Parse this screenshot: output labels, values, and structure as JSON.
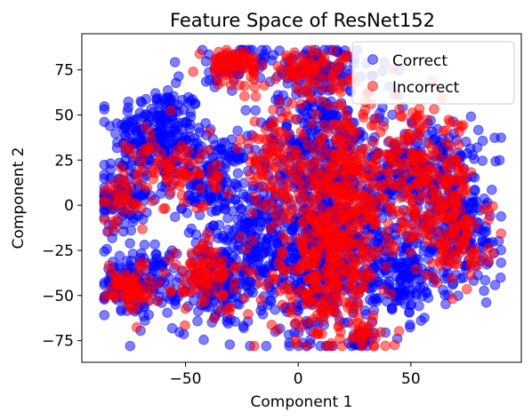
{
  "chart_data": {
    "type": "scatter",
    "title": "Feature Space of ResNet152",
    "xlabel": "Component 1",
    "ylabel": "Component 2",
    "xlim": [
      -96,
      99
    ],
    "ylim": [
      -87,
      95
    ],
    "xticks": [
      -50,
      0,
      50
    ],
    "yticks": [
      -75,
      -50,
      -25,
      0,
      25,
      50,
      75
    ],
    "grid": false,
    "legend_position": "upper-right",
    "series": [
      {
        "name": "Correct",
        "color": "#0000ff",
        "opacity": 0.5,
        "clusters": [
          {
            "cx": -62,
            "cy": 40,
            "sx": 10,
            "sy": 13,
            "n": 230
          },
          {
            "cx": -78,
            "cy": 5,
            "sx": 6,
            "sy": 10,
            "n": 110
          },
          {
            "cx": -40,
            "cy": 15,
            "sx": 9,
            "sy": 12,
            "n": 150
          },
          {
            "cx": -70,
            "cy": -42,
            "sx": 9,
            "sy": 10,
            "n": 150
          },
          {
            "cx": -35,
            "cy": -45,
            "sx": 10,
            "sy": 12,
            "n": 170
          },
          {
            "cx": -20,
            "cy": -12,
            "sx": 10,
            "sy": 14,
            "n": 150
          },
          {
            "cx": 5,
            "cy": 30,
            "sx": 12,
            "sy": 20,
            "n": 260
          },
          {
            "cx": 5,
            "cy": -35,
            "sx": 11,
            "sy": 20,
            "n": 280
          },
          {
            "cx": 25,
            "cy": 0,
            "sx": 13,
            "sy": 30,
            "n": 330
          },
          {
            "cx": 58,
            "cy": 20,
            "sx": 12,
            "sy": 15,
            "n": 200
          },
          {
            "cx": 72,
            "cy": -15,
            "sx": 10,
            "sy": 15,
            "n": 170
          },
          {
            "cx": 45,
            "cy": -40,
            "sx": 10,
            "sy": 12,
            "n": 150
          },
          {
            "cx": 10,
            "cy": 75,
            "sx": 12,
            "sy": 7,
            "n": 110
          },
          {
            "cx": -30,
            "cy": 78,
            "sx": 8,
            "sy": 6,
            "n": 60
          },
          {
            "cx": 28,
            "cy": -75,
            "sx": 4,
            "sy": 3,
            "n": 20
          }
        ]
      },
      {
        "name": "Incorrect",
        "color": "#ff0000",
        "opacity": 0.5,
        "clusters": [
          {
            "cx": 20,
            "cy": 5,
            "sx": 12,
            "sy": 25,
            "n": 320
          },
          {
            "cx": 55,
            "cy": 15,
            "sx": 12,
            "sy": 18,
            "n": 200
          },
          {
            "cx": 10,
            "cy": -40,
            "sx": 12,
            "sy": 18,
            "n": 220
          },
          {
            "cx": -30,
            "cy": 78,
            "sx": 6,
            "sy": 5,
            "n": 70
          },
          {
            "cx": 5,
            "cy": 75,
            "sx": 10,
            "sy": 6,
            "n": 80
          },
          {
            "cx": -75,
            "cy": -45,
            "sx": 5,
            "sy": 7,
            "n": 70
          },
          {
            "cx": -40,
            "cy": -40,
            "sx": 8,
            "sy": 10,
            "n": 90
          },
          {
            "cx": -55,
            "cy": 20,
            "sx": 10,
            "sy": 12,
            "n": 90
          },
          {
            "cx": 70,
            "cy": -20,
            "sx": 8,
            "sy": 12,
            "n": 100
          },
          {
            "cx": -10,
            "cy": 25,
            "sx": 8,
            "sy": 15,
            "n": 90
          },
          {
            "cx": -80,
            "cy": 2,
            "sx": 4,
            "sy": 8,
            "n": 30
          },
          {
            "cx": 30,
            "cy": -72,
            "sx": 5,
            "sy": 4,
            "n": 25
          }
        ]
      }
    ]
  }
}
